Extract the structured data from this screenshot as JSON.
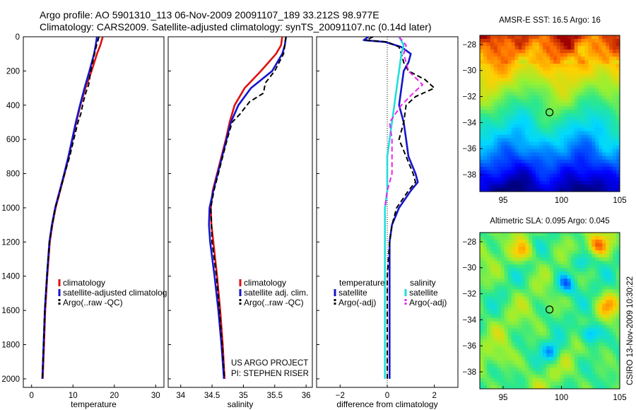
{
  "header": {
    "line1": "Argo profile: AO 5901310_113 06-Nov-2009 20091107_189 33.212S 98.977E",
    "line2": "Climatology: CARS2009. Satellite-adjusted climatology: synTS_20091107.nc (0.14d later)"
  },
  "colors": {
    "climatology": "#dd1111",
    "satellite": "#1515cc",
    "argo": "#000000",
    "salinity_satellite": "#22dddd",
    "salinity_argo": "#ee22ee"
  },
  "credits": {
    "project": "US ARGO PROJECT",
    "pi": "PI: STEPHEN RISER"
  },
  "sidebar_label": "CSIRO 13-Nov-2009 10:30:22",
  "chart_data": [
    {
      "type": "line",
      "xlabel": "temperature",
      "xlim": [
        -2,
        32
      ],
      "ylim": [
        2050,
        0
      ],
      "xticks": [
        0,
        10,
        20,
        30
      ],
      "yticks": [
        0,
        200,
        400,
        600,
        800,
        1000,
        1200,
        1400,
        1600,
        1800,
        2000
      ],
      "legend": [
        "climatology",
        "satellite-adjusted climatolog",
        "Argo(..raw -QC)"
      ],
      "series": [
        {
          "name": "climatology",
          "color_key": "climatology",
          "dash": false,
          "depth": [
            0,
            50,
            100,
            200,
            300,
            400,
            500,
            600,
            700,
            800,
            900,
            1000,
            1100,
            1200,
            1400,
            1600,
            1800,
            2000
          ],
          "values": [
            17.2,
            16.6,
            15.8,
            14.5,
            13.0,
            11.8,
            10.8,
            9.9,
            9.0,
            8.0,
            6.9,
            5.8,
            5.0,
            4.4,
            3.8,
            3.3,
            3.0,
            2.7
          ]
        },
        {
          "name": "satellite-adjusted climatolog",
          "color_key": "satellite",
          "dash": false,
          "depth": [
            0,
            50,
            100,
            200,
            300,
            400,
            500,
            600,
            700,
            800,
            900,
            1000,
            1100,
            1200,
            1400,
            1600,
            1800,
            2000
          ],
          "values": [
            15.8,
            15.5,
            15.1,
            14.0,
            12.8,
            11.7,
            10.7,
            9.8,
            8.9,
            7.9,
            6.8,
            5.7,
            4.9,
            4.3,
            3.7,
            3.2,
            2.9,
            2.6
          ]
        },
        {
          "name": "Argo(..raw -QC)",
          "color_key": "argo",
          "dash": true,
          "depth": [
            0,
            50,
            100,
            200,
            280,
            320,
            380,
            450,
            500,
            600,
            700,
            800,
            900,
            1000,
            1200,
            1400,
            1600,
            1800,
            2000
          ],
          "values": [
            16.3,
            15.7,
            15.2,
            14.3,
            13.8,
            13.2,
            12.5,
            11.9,
            11.2,
            10.2,
            9.2,
            8.0,
            6.9,
            5.7,
            4.3,
            3.7,
            3.2,
            2.9,
            2.6
          ]
        }
      ]
    },
    {
      "type": "line",
      "xlabel": "salinity",
      "xlim": [
        33.8,
        36.1
      ],
      "ylim": [
        2050,
        0
      ],
      "xticks": [
        34,
        34.5,
        35,
        35.5,
        36
      ],
      "legend": [
        "climatology",
        "satellite adj. clim.",
        "Argo(..raw -QC)"
      ],
      "series": [
        {
          "name": "climatology",
          "color_key": "climatology",
          "dash": false,
          "depth": [
            0,
            50,
            100,
            200,
            300,
            400,
            500,
            600,
            700,
            800,
            900,
            1000,
            1100,
            1200,
            1400,
            1600,
            1800,
            2000
          ],
          "values": [
            35.62,
            35.6,
            35.52,
            35.28,
            35.02,
            34.86,
            34.78,
            34.72,
            34.65,
            34.58,
            34.51,
            34.48,
            34.49,
            34.52,
            34.58,
            34.63,
            34.67,
            34.7
          ]
        },
        {
          "name": "satellite adj. clim.",
          "color_key": "satellite",
          "dash": false,
          "depth": [
            0,
            50,
            100,
            200,
            300,
            400,
            500,
            600,
            700,
            800,
            900,
            1000,
            1100,
            1200,
            1400,
            1600,
            1800,
            2000
          ],
          "values": [
            35.68,
            35.66,
            35.62,
            35.46,
            35.12,
            34.92,
            34.8,
            34.73,
            34.66,
            34.59,
            34.52,
            34.46,
            34.45,
            34.47,
            34.54,
            34.6,
            34.65,
            34.69
          ]
        },
        {
          "name": "Argo(..raw -QC)",
          "color_key": "argo",
          "dash": true,
          "depth": [
            0,
            50,
            100,
            200,
            270,
            330,
            380,
            450,
            500,
            600,
            700,
            800,
            900,
            1000,
            1200,
            1400,
            1600,
            1800,
            2000
          ],
          "values": [
            35.68,
            35.66,
            35.64,
            35.5,
            35.35,
            35.32,
            35.1,
            34.95,
            34.82,
            34.74,
            34.67,
            34.6,
            34.53,
            34.48,
            34.5,
            34.57,
            34.62,
            34.66,
            34.7
          ]
        }
      ]
    },
    {
      "type": "line",
      "xlabel": "difference from climatology",
      "xlim": [
        -3,
        3
      ],
      "ylim": [
        2050,
        0
      ],
      "xticks": [
        -2,
        0,
        2
      ],
      "legend_groups": [
        {
          "title": "temperature",
          "items": [
            "satellite",
            "Argo(-adj)"
          ]
        },
        {
          "title": "salinity",
          "items": [
            "satellite",
            "Argo(-adj)"
          ]
        }
      ],
      "series": [
        {
          "name": "temperature satellite",
          "color_key": "satellite",
          "dash": false,
          "depth": [
            0,
            20,
            30,
            60,
            100,
            150,
            200,
            300,
            400,
            500,
            600,
            700,
            800,
            850,
            900,
            1000,
            1100,
            1200,
            1400,
            1600,
            1800,
            2000
          ],
          "values": [
            -0.8,
            -1.0,
            -0.1,
            0.6,
            1.0,
            0.9,
            0.7,
            0.6,
            0.5,
            0.7,
            0.8,
            0.9,
            1.2,
            1.3,
            1.0,
            0.5,
            0.2,
            0.1,
            0.1,
            0.1,
            0.1,
            0.1
          ]
        },
        {
          "name": "temperature Argo(-adj)",
          "color_key": "argo",
          "dash": true,
          "depth": [
            0,
            20,
            30,
            60,
            100,
            150,
            200,
            250,
            300,
            350,
            400,
            500,
            600,
            700,
            800,
            850,
            900,
            1000,
            1100,
            1200,
            1400,
            1600,
            1800,
            2000
          ],
          "values": [
            -0.6,
            -0.9,
            0.0,
            0.5,
            0.6,
            0.7,
            0.9,
            1.6,
            2.0,
            1.2,
            0.8,
            0.7,
            0.5,
            0.8,
            1.1,
            1.2,
            0.9,
            0.4,
            0.2,
            0.1,
            0.0,
            0.0,
            0.0,
            0.0
          ]
        },
        {
          "name": "salinity satellite",
          "color_key": "salinity_satellite",
          "dash": false,
          "depth": [
            0,
            50,
            100,
            200,
            300,
            400,
            500,
            600,
            700,
            800,
            900,
            1000,
            1100,
            1200,
            1400,
            1600,
            1800,
            2000
          ],
          "values": [
            0.5,
            0.7,
            0.6,
            0.5,
            0.4,
            0.3,
            0.2,
            0.1,
            0.0,
            0.0,
            0.0,
            -0.1,
            -0.1,
            -0.1,
            -0.1,
            -0.1,
            -0.1,
            -0.1
          ]
        },
        {
          "name": "salinity Argo(-adj)",
          "color_key": "salinity_argo",
          "dash": true,
          "depth": [
            0,
            50,
            100,
            200,
            280,
            330,
            400,
            500,
            600,
            700,
            800,
            900,
            1000
          ],
          "values": [
            0.5,
            0.8,
            0.7,
            0.9,
            1.5,
            1.1,
            0.6,
            0.1,
            0.2,
            0.2,
            0.2,
            0.0,
            -0.1
          ]
        }
      ]
    },
    {
      "type": "heatmap",
      "title": "AMSR-E SST: 16.5 Argo: 16",
      "xlim": [
        93,
        105
      ],
      "ylim": [
        -39.3,
        -27.3
      ],
      "xticks": [
        95,
        100,
        105
      ],
      "yticks": [
        -28,
        -30,
        -32,
        -34,
        -36,
        -38
      ],
      "marker": {
        "lon": 98.977,
        "lat": -33.212
      },
      "palette": "sst"
    },
    {
      "type": "heatmap",
      "title": "Altimetric SLA: 0.095 Argo: 0.045",
      "xlim": [
        93,
        105
      ],
      "ylim": [
        -39.3,
        -27.3
      ],
      "xticks": [
        95,
        100,
        105
      ],
      "yticks": [
        -28,
        -30,
        -32,
        -34,
        -36,
        -38
      ],
      "marker": {
        "lon": 98.977,
        "lat": -33.212
      },
      "palette": "sla"
    }
  ]
}
